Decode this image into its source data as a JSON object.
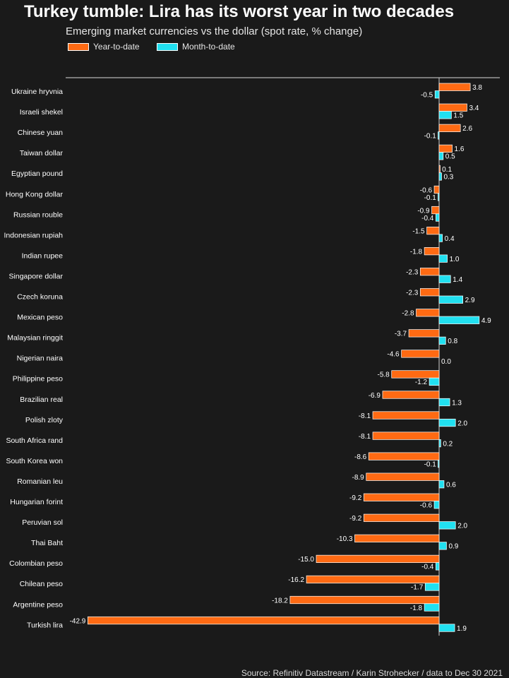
{
  "title": "Turkey tumble: Lira has its worst year in two decades",
  "subtitle": "Emerging market currencies vs the dollar (spot rate, % change)",
  "source": "Source: Refinitiv Datastream / Karin Strohecker / data to Dec 30 2021",
  "colors": {
    "background": "#1a1a1a",
    "ytd": "#ff6a13",
    "mtd": "#21e0f0",
    "axis": "#9a9a9a"
  },
  "chart_data": {
    "type": "bar",
    "orientation": "horizontal",
    "categories": [
      "Ukraine hryvnia",
      "Israeli shekel",
      "Chinese yuan",
      "Taiwan dollar",
      "Egyptian pound",
      "Hong Kong dollar",
      "Russian rouble",
      "Indonesian rupiah",
      "Indian rupee",
      "Singapore dollar",
      "Czech koruna",
      "Mexican peso",
      "Malaysian ringgit",
      "Nigerian naira",
      "Philippine peso",
      "Brazilian real",
      "Polish zloty",
      "South Africa rand",
      "South Korea won",
      "Romanian leu",
      "Hungarian forint",
      "Peruvian sol",
      "Thai Baht",
      "Colombian peso",
      "Chilean peso",
      "Argentine peso",
      "Turkish lira"
    ],
    "series": [
      {
        "name": "Year-to-date",
        "color": "#ff6a13",
        "values": [
          3.8,
          3.4,
          2.6,
          1.6,
          0.1,
          -0.6,
          -0.9,
          -1.5,
          -1.8,
          -2.3,
          -2.3,
          -2.8,
          -3.7,
          -4.6,
          -5.8,
          -6.9,
          -8.1,
          -8.1,
          -8.6,
          -8.9,
          -9.2,
          -9.2,
          -10.3,
          -15.0,
          -16.2,
          -18.2,
          -42.9
        ]
      },
      {
        "name": "Month-to-date",
        "color": "#21e0f0",
        "values": [
          -0.5,
          1.5,
          -0.1,
          0.5,
          0.3,
          -0.1,
          -0.4,
          0.4,
          1.0,
          1.4,
          2.9,
          4.9,
          0.8,
          0.0,
          -1.2,
          1.3,
          2.0,
          0.2,
          -0.1,
          0.6,
          -0.6,
          2.0,
          0.9,
          -0.4,
          -1.7,
          -1.8,
          1.9
        ]
      }
    ],
    "xlim": [
      -42.9,
      7.5
    ],
    "grid": false,
    "legend_position": "top-left"
  }
}
